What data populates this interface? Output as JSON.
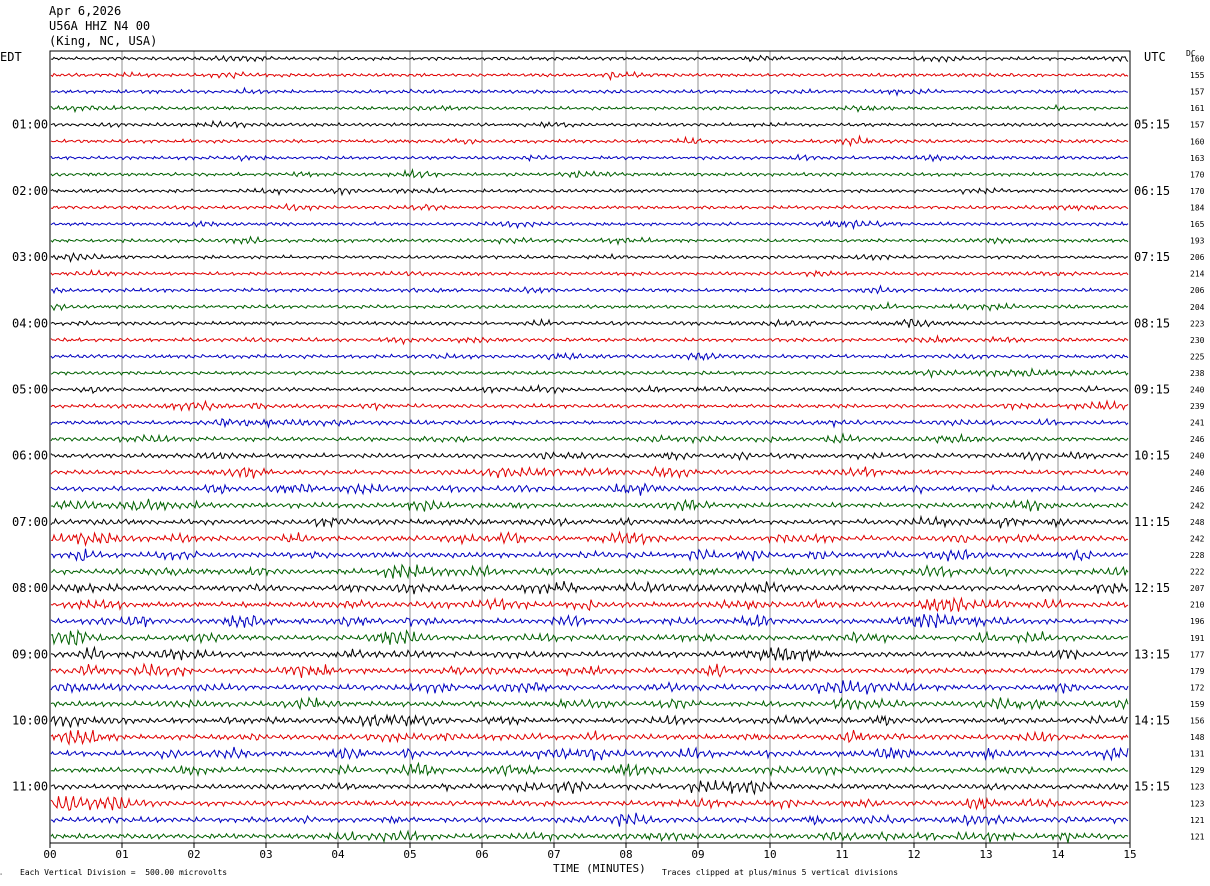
{
  "header": {
    "date": "Apr 6,2026",
    "station": "U56A HHZ N4 00",
    "location": "(King, NC, USA)"
  },
  "left_zone": "EDT",
  "right_zone": "UTC",
  "dc_label": "DC",
  "footer": {
    "division_note": "Each Vertical Division =  500.00 microvolts",
    "clip_note": "Traces clipped at plus/minus 5 vertical divisions"
  },
  "colors": {
    "trace_cycle": [
      "#000000",
      "#e00000",
      "#0000c0",
      "#006000"
    ],
    "grid": "#909090",
    "frame": "#000000"
  },
  "chart_data": {
    "type": "line",
    "xlabel": "TIME (MINUTES)",
    "x_ticks": [
      "00",
      "01",
      "02",
      "03",
      "04",
      "05",
      "06",
      "07",
      "08",
      "09",
      "10",
      "11",
      "12",
      "13",
      "14",
      "15"
    ],
    "xlim": [
      0,
      15
    ],
    "left_hour_labels": [
      "01:00",
      "02:00",
      "03:00",
      "04:00",
      "05:00",
      "06:00",
      "07:00",
      "08:00",
      "09:00",
      "10:00",
      "11:00"
    ],
    "right_hour_labels": [
      "05:15",
      "06:15",
      "07:15",
      "08:15",
      "09:15",
      "10:15",
      "11:15",
      "12:15",
      "13:15",
      "14:15",
      "15:15"
    ],
    "dc_offsets": [
      160,
      155,
      157,
      161,
      157,
      160,
      163,
      170,
      170,
      184,
      165,
      193,
      206,
      214,
      206,
      204,
      223,
      230,
      225,
      238,
      240,
      239,
      241,
      246,
      240,
      240,
      246,
      242,
      248,
      242,
      228,
      222,
      207,
      210,
      196,
      191,
      177,
      179,
      172,
      159,
      156,
      148,
      131,
      129,
      123,
      123,
      121,
      121
    ],
    "trace_activity": [
      1,
      1,
      1,
      1,
      1,
      1,
      1,
      1,
      1,
      1,
      1,
      1,
      1,
      1,
      1,
      1,
      1.2,
      1.2,
      1.2,
      1.3,
      1.5,
      1.6,
      1.8,
      2.0,
      2.2,
      2.4,
      2.6,
      2.8,
      3.0,
      3.2,
      3.3,
      3.4,
      3.4,
      3.4,
      3.3,
      3.3,
      3.3,
      3.3,
      3.2,
      3.2,
      3.2,
      3.2,
      3.2,
      3.1,
      3.1,
      3.1,
      3.0,
      3.0
    ]
  }
}
